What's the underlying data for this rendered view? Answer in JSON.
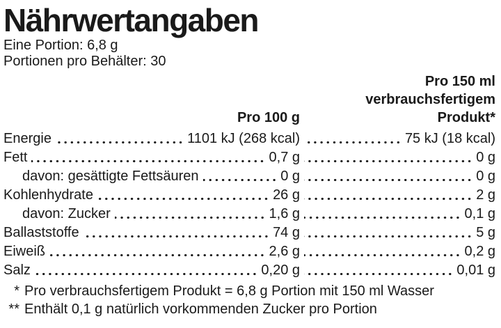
{
  "label": {
    "title": "Nährwertangaben",
    "serving_size": "Eine Portion: 6,8 g",
    "servings_per_container": "Portionen pro Behälter: 30",
    "columns": {
      "per_100g_header": "Pro 100 g",
      "per_150ml_header_line1": "Pro 150 ml",
      "per_150ml_header_line2": "verbrauchsfertigem",
      "per_150ml_header_line3": "Produkt*"
    },
    "rows": [
      {
        "label": "Energie",
        "per_100g": "1101 kJ (268 kcal)",
        "per_150ml": "75 kJ (18 kcal)"
      },
      {
        "label": "Fett",
        "per_100g": "0,7 g",
        "per_150ml": "0 g"
      },
      {
        "label": "davon: gesättigte Fettsäuren",
        "per_100g": "0 g",
        "per_150ml": "0 g"
      },
      {
        "label": "Kohlenhydrate",
        "per_100g": "26 g",
        "per_150ml": "2 g"
      },
      {
        "label": "davon: Zucker",
        "per_100g": "1,6 g",
        "per_150ml": "0,1 g"
      },
      {
        "label": "Ballaststoffe",
        "per_100g": "74 g",
        "per_150ml": "5 g"
      },
      {
        "label": "Eiweiß",
        "per_100g": "2,6 g",
        "per_150ml": "0,2 g"
      },
      {
        "label": "Salz",
        "per_100g": "0,20 g",
        "per_150ml": "0,01 g"
      }
    ],
    "footnotes": [
      {
        "marker": "*",
        "text": "Pro verbrauchsfertigem Produkt = 6,8 g Portion mit 150 ml Wasser"
      },
      {
        "marker": "**",
        "text": "Enthält 0,1 g natürlich vorkommenden Zucker pro Portion"
      }
    ],
    "text_color": "#1a1a1a",
    "background_color": "#ffffff"
  }
}
